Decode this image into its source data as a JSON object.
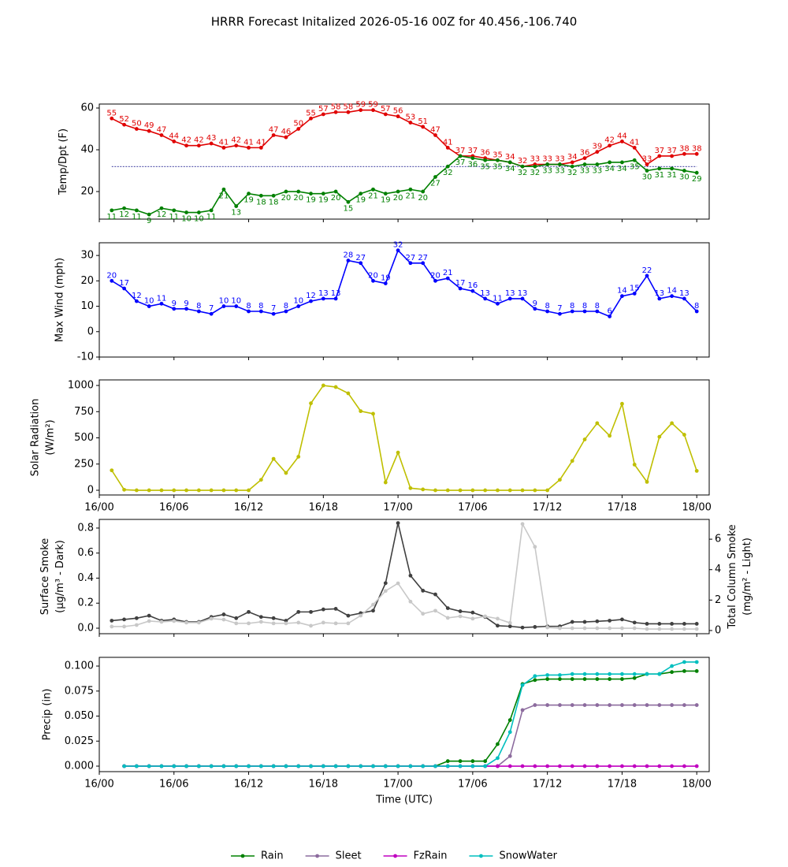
{
  "title": "HRRR Forecast Initalized 2026-05-16 00Z for 40.456,-106.740",
  "chart_data": [
    {
      "type": "line",
      "ylabel": "Temp/Dpt (F)",
      "x": [
        "16/01",
        "16/02",
        "16/03",
        "16/04",
        "16/05",
        "16/06",
        "16/07",
        "16/08",
        "16/09",
        "16/10",
        "16/11",
        "16/12",
        "16/13",
        "16/14",
        "16/15",
        "16/16",
        "16/17",
        "16/18",
        "16/19",
        "16/20",
        "16/21",
        "16/22",
        "16/23",
        "17/00",
        "17/01",
        "17/02",
        "17/03",
        "17/04",
        "17/05",
        "17/06",
        "17/07",
        "17/08",
        "17/09",
        "17/10",
        "17/11",
        "17/12",
        "17/13",
        "17/14",
        "17/15",
        "17/16",
        "17/17",
        "17/18",
        "17/19",
        "17/20",
        "17/21",
        "17/22",
        "17/23",
        "18/00"
      ],
      "xlim": [
        "16/00",
        "18/01"
      ],
      "xticks": [
        "16/00",
        "16/06",
        "16/12",
        "16/18",
        "17/00",
        "17/06",
        "17/12",
        "17/18",
        "18/00"
      ],
      "ylim": [
        6.8,
        61.9
      ],
      "yticks": [
        20,
        40,
        60
      ],
      "hline": 32,
      "hline_color": "#000080",
      "series": [
        {
          "name": "Temp",
          "color": "#e00000",
          "data_labels": "above",
          "values": [
            55,
            52,
            50,
            49,
            47,
            44,
            42,
            42,
            43,
            41,
            42,
            41,
            41,
            47,
            46,
            50,
            55,
            57,
            58,
            58,
            59,
            59,
            57,
            56,
            53,
            51,
            47,
            41,
            37,
            37,
            36,
            35,
            34,
            32,
            33,
            33,
            33,
            34,
            36,
            39,
            42,
            44,
            41,
            33,
            37,
            37,
            38,
            38
          ]
        },
        {
          "name": "Dpt",
          "color": "#008000",
          "data_labels": "below",
          "values": [
            11,
            12,
            11,
            9,
            12,
            11,
            10,
            10,
            11,
            21,
            13,
            19,
            18,
            18,
            20,
            20,
            19,
            19,
            20,
            15,
            19,
            21,
            19,
            20,
            21,
            20,
            27,
            32,
            37,
            36,
            35,
            35,
            34,
            32,
            32,
            33,
            33,
            32,
            33,
            33,
            34,
            34,
            35,
            30,
            31,
            31,
            30,
            29
          ]
        }
      ]
    },
    {
      "type": "line",
      "ylabel": "Max Wind (mph)",
      "x": [
        "16/01",
        "16/02",
        "16/03",
        "16/04",
        "16/05",
        "16/06",
        "16/07",
        "16/08",
        "16/09",
        "16/10",
        "16/11",
        "16/12",
        "16/13",
        "16/14",
        "16/15",
        "16/16",
        "16/17",
        "16/18",
        "16/19",
        "16/20",
        "16/21",
        "16/22",
        "16/23",
        "17/00",
        "17/01",
        "17/02",
        "17/03",
        "17/04",
        "17/05",
        "17/06",
        "17/07",
        "17/08",
        "17/09",
        "17/10",
        "17/11",
        "17/12",
        "17/13",
        "17/14",
        "17/15",
        "17/16",
        "17/17",
        "17/18",
        "17/19",
        "17/20",
        "17/21",
        "17/22",
        "17/23",
        "18/00"
      ],
      "xlim": [
        "16/00",
        "18/01"
      ],
      "xticks": [
        "16/00",
        "16/06",
        "16/12",
        "16/18",
        "17/00",
        "17/06",
        "17/12",
        "17/18",
        "18/00"
      ],
      "ylim": [
        -10,
        35
      ],
      "yticks": [
        -10,
        0,
        10,
        20,
        30
      ],
      "series": [
        {
          "name": "Max Wind",
          "color": "#0000ff",
          "data_labels": "above",
          "values": [
            20,
            17,
            12,
            10,
            11,
            9,
            9,
            8,
            7,
            10,
            10,
            8,
            8,
            7,
            8,
            10,
            12,
            13,
            13,
            28,
            27,
            20,
            19,
            32,
            27,
            27,
            20,
            21,
            17,
            16,
            13,
            11,
            13,
            13,
            9,
            8,
            7,
            8,
            8,
            8,
            6,
            14,
            15,
            22,
            13,
            14,
            13,
            8
          ]
        }
      ]
    },
    {
      "type": "line",
      "ylabel": [
        "Solar Radiation",
        "(W/m²)"
      ],
      "x": [
        "16/01",
        "16/02",
        "16/03",
        "16/04",
        "16/05",
        "16/06",
        "16/07",
        "16/08",
        "16/09",
        "16/10",
        "16/11",
        "16/12",
        "16/13",
        "16/14",
        "16/15",
        "16/16",
        "16/17",
        "16/18",
        "16/19",
        "16/20",
        "16/21",
        "16/22",
        "16/23",
        "17/00",
        "17/01",
        "17/02",
        "17/03",
        "17/04",
        "17/05",
        "17/06",
        "17/07",
        "17/08",
        "17/09",
        "17/10",
        "17/11",
        "17/12",
        "17/13",
        "17/14",
        "17/15",
        "17/16",
        "17/17",
        "17/18",
        "17/19",
        "17/20",
        "17/21",
        "17/22",
        "17/23",
        "18/00"
      ],
      "xlim": [
        "16/00",
        "18/01"
      ],
      "xticks": [
        "16/00",
        "16/06",
        "16/12",
        "16/18",
        "17/00",
        "17/06",
        "17/12",
        "17/18",
        "18/00"
      ],
      "ylim": [
        -45,
        1053
      ],
      "yticks": [
        0,
        250,
        500,
        750,
        1000
      ],
      "series": [
        {
          "name": "Solar Radiation",
          "color": "#bfbf00",
          "values": [
            190,
            5,
            0,
            0,
            0,
            0,
            0,
            0,
            0,
            0,
            0,
            0,
            100,
            300,
            165,
            320,
            830,
            1000,
            985,
            925,
            755,
            730,
            75,
            360,
            20,
            8,
            0,
            0,
            0,
            0,
            0,
            0,
            0,
            0,
            0,
            0,
            100,
            280,
            485,
            640,
            520,
            825,
            245,
            80,
            510,
            640,
            530,
            185
          ]
        }
      ]
    },
    {
      "type": "line",
      "ylabel": [
        "Surface Smoke",
        "(μg/m³ - Dark)"
      ],
      "y2label": [
        "Total Column Smoke",
        "(mg/m² - Light)"
      ],
      "x": [
        "16/01",
        "16/02",
        "16/03",
        "16/04",
        "16/05",
        "16/06",
        "16/07",
        "16/08",
        "16/09",
        "16/10",
        "16/11",
        "16/12",
        "16/13",
        "16/14",
        "16/15",
        "16/16",
        "16/17",
        "16/18",
        "16/19",
        "16/20",
        "16/21",
        "16/22",
        "16/23",
        "17/00",
        "17/01",
        "17/02",
        "17/03",
        "17/04",
        "17/05",
        "17/06",
        "17/07",
        "17/08",
        "17/09",
        "17/10",
        "17/11",
        "17/12",
        "17/13",
        "17/14",
        "17/15",
        "17/16",
        "17/17",
        "17/18",
        "17/19",
        "17/20",
        "17/21",
        "17/22",
        "17/23",
        "18/00"
      ],
      "xlim": [
        "16/00",
        "18/01"
      ],
      "xticks": [
        "16/00",
        "16/06",
        "16/12",
        "16/18",
        "17/00",
        "17/06",
        "17/12",
        "17/18",
        "18/00"
      ],
      "ylim": [
        -0.044,
        0.869
      ],
      "yticks": [
        {
          "value": 0,
          "label": "0.0"
        },
        0.2,
        0.4,
        0.6,
        0.8
      ],
      "y2lim": [
        -0.21,
        7.3
      ],
      "y2ticks": [
        0,
        2,
        4,
        6
      ],
      "series": [
        {
          "name": "Surface Smoke",
          "color": "#404040",
          "values": [
            0.06,
            0.07,
            0.08,
            0.1,
            0.06,
            0.07,
            0.05,
            0.05,
            0.09,
            0.11,
            0.08,
            0.13,
            0.09,
            0.08,
            0.06,
            0.13,
            0.13,
            0.15,
            0.155,
            0.1,
            0.12,
            0.14,
            0.36,
            0.84,
            0.42,
            0.3,
            0.27,
            0.16,
            0.135,
            0.125,
            0.09,
            0.02,
            0.015,
            0.005,
            0.01,
            0.015,
            0.015,
            0.05,
            0.05,
            0.055,
            0.06,
            0.07,
            0.045,
            0.035,
            0.035,
            0.035,
            0.035,
            0.035
          ]
        },
        {
          "name": "Total Column Smoke",
          "color": "#c8c8c8",
          "axis": "y2",
          "values": [
            0.26,
            0.26,
            0.36,
            0.62,
            0.57,
            0.62,
            0.52,
            0.52,
            0.78,
            0.72,
            0.47,
            0.47,
            0.57,
            0.47,
            0.47,
            0.52,
            0.31,
            0.52,
            0.47,
            0.47,
            0.98,
            1.7,
            2.6,
            3.1,
            1.9,
            1.1,
            1.3,
            0.83,
            0.93,
            0.78,
            0.93,
            0.78,
            0.5,
            7.0,
            5.5,
            0.2,
            0.15,
            0.15,
            0.15,
            0.15,
            0.15,
            0.15,
            0.15,
            0.1,
            0.1,
            0.1,
            0.1,
            0.1
          ]
        }
      ]
    },
    {
      "type": "line",
      "ylabel": "Precip (in)",
      "xlabel": "Time (UTC)",
      "legend": "bottom",
      "x": [
        "16/01",
        "16/02",
        "16/03",
        "16/04",
        "16/05",
        "16/06",
        "16/07",
        "16/08",
        "16/09",
        "16/10",
        "16/11",
        "16/12",
        "16/13",
        "16/14",
        "16/15",
        "16/16",
        "16/17",
        "16/18",
        "16/19",
        "16/20",
        "16/21",
        "16/22",
        "16/23",
        "17/00",
        "17/01",
        "17/02",
        "17/03",
        "17/04",
        "17/05",
        "17/06",
        "17/07",
        "17/08",
        "17/09",
        "17/10",
        "17/11",
        "17/12",
        "17/13",
        "17/14",
        "17/15",
        "17/16",
        "17/17",
        "17/18",
        "17/19",
        "17/20",
        "17/21",
        "17/22",
        "17/23",
        "18/00"
      ],
      "xlim": [
        "16/00",
        "18/01"
      ],
      "xticks": [
        "16/00",
        "16/06",
        "16/12",
        "16/18",
        "17/00",
        "17/06",
        "17/12",
        "17/18",
        "18/00"
      ],
      "ylim": [
        -0.0055,
        0.1087
      ],
      "yticks": [
        {
          "value": 0,
          "label": "0.000"
        },
        {
          "value": 0.025,
          "label": "0.025"
        },
        {
          "value": 0.05,
          "label": "0.050"
        },
        {
          "value": 0.075,
          "label": "0.075"
        },
        {
          "value": 0.1,
          "label": "0.100"
        }
      ],
      "series": [
        {
          "name": "Rain",
          "color": "#008000",
          "values": [
            null,
            0,
            0,
            0,
            0,
            0,
            0,
            0,
            0,
            0,
            0,
            0,
            0,
            0,
            0,
            0,
            0,
            0,
            0,
            0,
            0,
            0,
            0,
            0,
            0,
            0,
            0,
            0.005,
            0.005,
            0.005,
            0.005,
            0.022,
            0.046,
            0.082,
            0.086,
            0.087,
            0.087,
            0.087,
            0.087,
            0.087,
            0.087,
            0.087,
            0.088,
            0.092,
            0.092,
            0.094,
            0.095,
            0.095
          ]
        },
        {
          "name": "Sleet",
          "color": "#8c6b9e",
          "values": [
            null,
            0,
            0,
            0,
            0,
            0,
            0,
            0,
            0,
            0,
            0,
            0,
            0,
            0,
            0,
            0,
            0,
            0,
            0,
            0,
            0,
            0,
            0,
            0,
            0,
            0,
            0,
            0,
            0,
            0,
            0,
            0,
            0.01,
            0.056,
            0.061,
            0.061,
            0.061,
            0.061,
            0.061,
            0.061,
            0.061,
            0.061,
            0.061,
            0.061,
            0.061,
            0.061,
            0.061,
            0.061
          ]
        },
        {
          "name": "FzRain",
          "color": "#c000c0",
          "values": [
            null,
            0,
            0,
            0,
            0,
            0,
            0,
            0,
            0,
            0,
            0,
            0,
            0,
            0,
            0,
            0,
            0,
            0,
            0,
            0,
            0,
            0,
            0,
            0,
            0,
            0,
            0,
            0,
            0,
            0,
            0,
            0,
            0,
            0,
            0,
            0,
            0,
            0,
            0,
            0,
            0,
            0,
            0,
            0,
            0,
            0,
            0,
            0
          ]
        },
        {
          "name": "SnowWater",
          "color": "#00bfbf",
          "values": [
            null,
            0,
            0,
            0,
            0,
            0,
            0,
            0,
            0,
            0,
            0,
            0,
            0,
            0,
            0,
            0,
            0,
            0,
            0,
            0,
            0,
            0,
            0,
            0,
            0,
            0,
            0,
            0,
            0,
            0,
            0,
            0.008,
            0.034,
            0.081,
            0.09,
            0.091,
            0.091,
            0.092,
            0.092,
            0.092,
            0.092,
            0.092,
            0.092,
            0.092,
            0.092,
            0.1,
            0.104,
            0.104
          ]
        }
      ]
    }
  ]
}
